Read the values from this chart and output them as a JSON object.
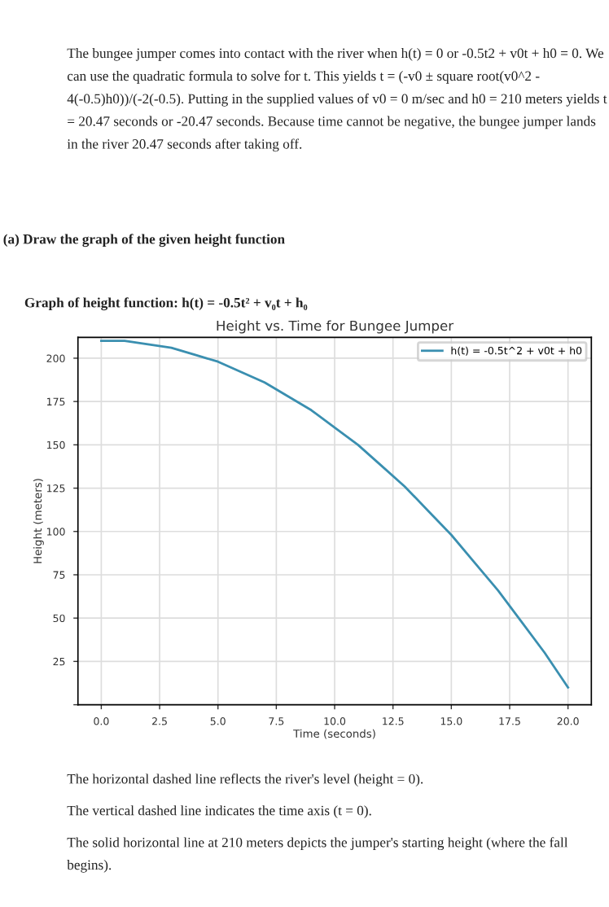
{
  "chart_data": {
    "type": "line",
    "title": "Height vs. Time for Bungee Jumper",
    "xlabel": "Time (seconds)",
    "ylabel": "Height (meters)",
    "annotations": [
      "The bungee jumper comes into contact with the river when h(t) = 0 or -0.5t2 + v0t + h0 = 0. We can use the quadratic formula to solve for t. This yields t = (-v0 ± square root(v0^2 - 4(-0.5)h0))/(-2(-0.5). Putting in the supplied values of v0 = 0 m/sec and h0 = 210 meters yields t = 20.47 seconds or -20.47 seconds. Because time cannot be negative, the bungee jumper lands in the river 20.47 seconds after taking off.",
      "(a) Draw the graph of the given height function",
      "Graph of height function: h(t) = -0.5t² + v₀t + h₀",
      "The horizontal dashed line reflects the river's level (height = 0).",
      "The vertical dashed line indicates the time axis (t = 0).",
      "The solid horizontal line at 210 meters depicts the jumper's starting height (where the fall begins)."
    ],
    "x": [
      0,
      1,
      2,
      3,
      4,
      5,
      6,
      7,
      8,
      9,
      10,
      11,
      12,
      13,
      14,
      15,
      16,
      17,
      18,
      19,
      20
    ],
    "series": [
      {
        "name": "h(t) = -0.5t^2 + v0t + h0",
        "color": "#3a8fb0",
        "values": [
          210,
          210,
          208,
          206,
          202,
          198,
          192,
          186,
          178,
          170,
          160,
          150,
          138,
          126,
          112,
          98,
          82,
          66,
          48,
          30,
          10
        ]
      }
    ],
    "xlim": [
      -1,
      21
    ],
    "ylim": [
      0,
      212
    ],
    "xticks": [
      {
        "value": 0,
        "label": "0.0"
      },
      2.5,
      {
        "value": 5,
        "label": "5.0"
      },
      7.5,
      {
        "value": 10,
        "label": "10.0"
      },
      12.5,
      {
        "value": 15,
        "label": "15.0"
      },
      17.5,
      {
        "value": 20,
        "label": "20.0"
      }
    ],
    "yticks": [
      {
        "value": 0,
        "label": null
      },
      25,
      50,
      75,
      100,
      125,
      150,
      175,
      200
    ],
    "grid": true,
    "legend": "top right",
    "marker": "none",
    "line_style": "solid"
  }
}
